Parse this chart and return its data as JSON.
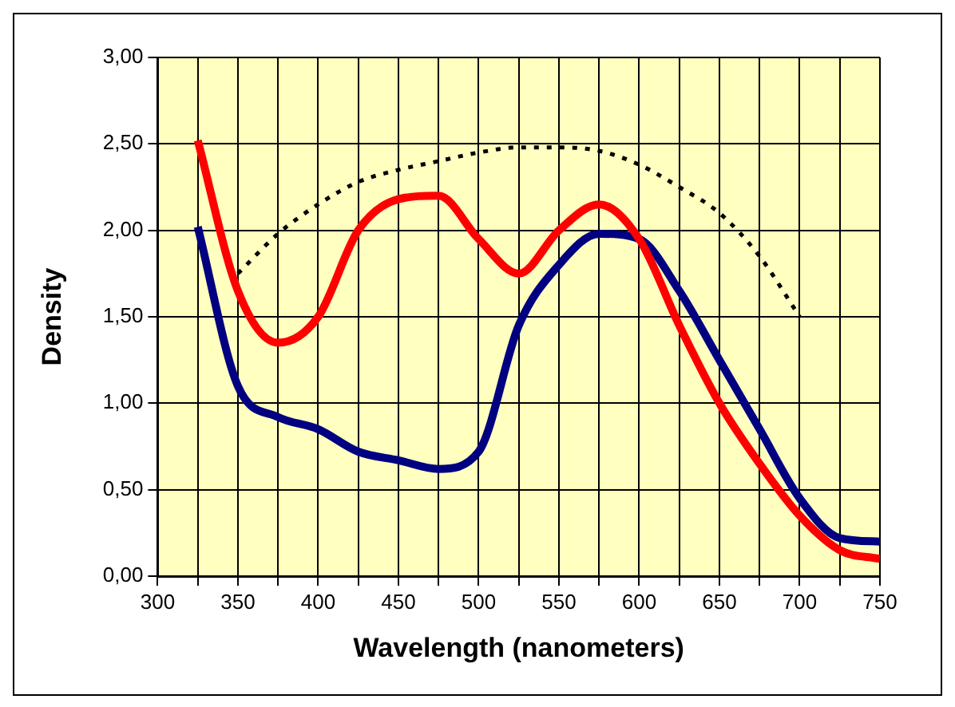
{
  "chart_data": {
    "type": "line",
    "xlabel": "Wavelength (nanometers)",
    "ylabel": "Density",
    "x": [
      325,
      350,
      375,
      400,
      425,
      450,
      475,
      500,
      525,
      550,
      575,
      600,
      625,
      650,
      675,
      700,
      725,
      750
    ],
    "series": [
      {
        "color": "#ff0000",
        "values": [
          2.52,
          1.65,
          1.35,
          1.5,
          2.0,
          2.18,
          2.2,
          1.95,
          1.75,
          2.0,
          2.15,
          1.95,
          1.45,
          1.0,
          0.65,
          0.35,
          0.15,
          0.1
        ]
      },
      {
        "color": "#000080",
        "values": [
          2.02,
          1.1,
          0.92,
          0.85,
          0.72,
          0.67,
          0.62,
          0.72,
          1.45,
          1.8,
          1.98,
          1.95,
          1.65,
          1.25,
          0.85,
          0.45,
          0.22,
          0.2
        ]
      },
      {
        "color": "#000000",
        "line_style": "dotted",
        "x": [
          350,
          375,
          400,
          425,
          450,
          475,
          500,
          525,
          550,
          575,
          600,
          625,
          650,
          675,
          700
        ],
        "values": [
          1.75,
          1.98,
          2.15,
          2.28,
          2.35,
          2.4,
          2.45,
          2.48,
          2.48,
          2.46,
          2.38,
          2.25,
          2.1,
          1.85,
          1.5
        ]
      }
    ],
    "xlim": [
      300,
      750
    ],
    "xticks": [
      300,
      {
        "value": 325,
        "label": null
      },
      350,
      {
        "value": 375,
        "label": null
      },
      400,
      {
        "value": 425,
        "label": null
      },
      450,
      {
        "value": 475,
        "label": null
      },
      500,
      {
        "value": 525,
        "label": null
      },
      550,
      {
        "value": 575,
        "label": null
      },
      600,
      {
        "value": 625,
        "label": null
      },
      650,
      {
        "value": 675,
        "label": null
      },
      700,
      {
        "value": 725,
        "label": null
      },
      750
    ],
    "ylim": [
      0,
      3
    ],
    "yticks": [
      {
        "value": 0,
        "label": "0,00"
      },
      {
        "value": 0.5,
        "label": "0,50"
      },
      {
        "value": 1,
        "label": "1,00"
      },
      {
        "value": 1.5,
        "label": "1,50"
      },
      {
        "value": 2,
        "label": "2,00"
      },
      {
        "value": 2.5,
        "label": "2,50"
      },
      {
        "value": 3,
        "label": "3,00"
      }
    ],
    "grid": true,
    "legend": false,
    "marker": "none",
    "line_style": "solid"
  }
}
